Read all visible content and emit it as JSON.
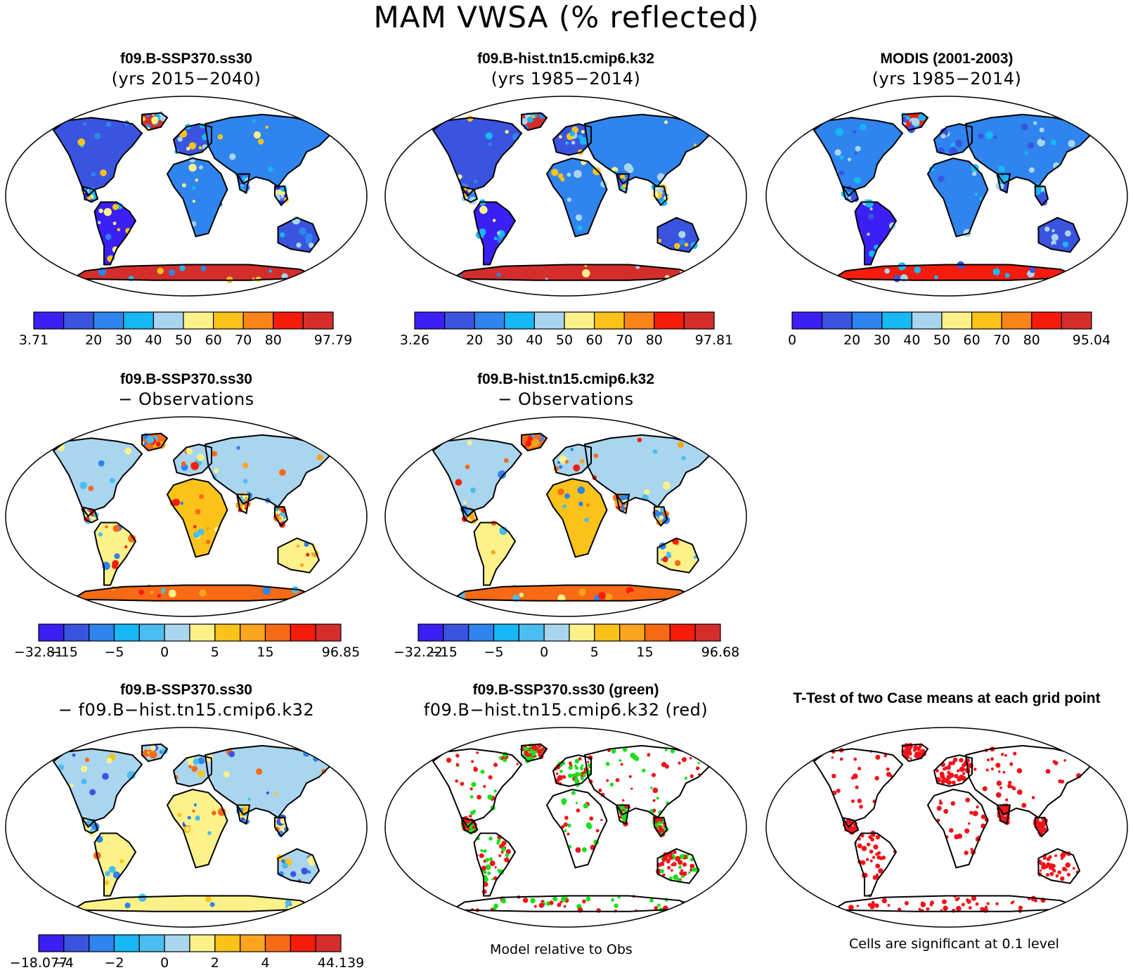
{
  "title": "MAM VWSA (% reflected)",
  "palettes": {
    "abs": [
      "#3b1ff5",
      "#3a54e0",
      "#2f84ee",
      "#17b8f4",
      "#a9d5ef",
      "#fdf28a",
      "#fbc31a",
      "#f98419",
      "#f51c0c",
      "#d42e2c"
    ],
    "diff": [
      "#3b1ff5",
      "#3a54e0",
      "#2f84ee",
      "#17b8f4",
      "#4bbdf0",
      "#a9d5ef",
      "#fdf28a",
      "#fbc31a",
      "#f9a51e",
      "#f96a16",
      "#f51c0c",
      "#d42e2c"
    ]
  },
  "panels": [
    {
      "id": "model-case",
      "title1": "f09.B-SSP370.ss30",
      "title2": "(yrs 2015−2040)",
      "scheme": "abs",
      "colorbar": {
        "labels": [
          "3.71",
          "",
          "20",
          "30",
          "40",
          "50",
          "60",
          "70",
          "80",
          "",
          "97.79"
        ]
      }
    },
    {
      "id": "model-ref",
      "title1": "f09.B-hist.tn15.cmip6.k32",
      "title2": "(yrs 1985−2014)",
      "scheme": "abs",
      "colorbar": {
        "labels": [
          "3.26",
          "",
          "20",
          "30",
          "40",
          "50",
          "60",
          "70",
          "80",
          "",
          "97.81"
        ]
      }
    },
    {
      "id": "obs",
      "title1": "MODIS (2001-2003)",
      "title2": "(yrs 1985−2014)",
      "scheme": "obs",
      "colorbar": {
        "labels": [
          "0",
          "",
          "20",
          "30",
          "40",
          "50",
          "60",
          "70",
          "80",
          "",
          "95.04"
        ]
      }
    },
    {
      "id": "case-minus-obs",
      "title1": "f09.B-SSP370.ss30",
      "title2": "− Observations",
      "scheme": "biasA",
      "colorbar": {
        "labels": [
          "−32.81",
          "−15",
          "",
          "−5",
          "",
          "0",
          "",
          "5",
          "",
          "15",
          "",
          "",
          "96.85"
        ]
      }
    },
    {
      "id": "ref-minus-obs",
      "title1": "f09.B-hist.tn15.cmip6.k32",
      "title2": "− Observations",
      "scheme": "biasB",
      "colorbar": {
        "labels": [
          "−32.22",
          "−15",
          "",
          "−5",
          "",
          "0",
          "",
          "5",
          "",
          "15",
          "",
          "",
          "96.68"
        ]
      }
    },
    {
      "id": "case-minus-ref",
      "title1": "f09.B-SSP370.ss30",
      "title2": "− f09.B−hist.tn15.cmip6.k32",
      "scheme": "diff",
      "colorbar": {
        "labels": [
          "−18.077",
          "−4",
          "",
          "−2",
          "",
          "0",
          "",
          "2",
          "",
          "4",
          "",
          "",
          "44.139"
        ]
      }
    },
    {
      "id": "relative-to-obs",
      "title1": "f09.B-SSP370.ss30 (green)",
      "title2": "f09.B−hist.tn15.cmip6.k32 (red)",
      "scheme": "rel"
    },
    {
      "id": "ttest",
      "title1": "T-Test of two Case means at each grid point",
      "title2": "",
      "scheme": "sig"
    }
  ],
  "footnotes": {
    "relative": "Model relative to Obs",
    "significance": "Cells are significant at 0.1 level"
  },
  "colors": {
    "green": "#19e01a",
    "red": "#f0141a",
    "outline": "#000000",
    "ocean": "#ffffff"
  }
}
